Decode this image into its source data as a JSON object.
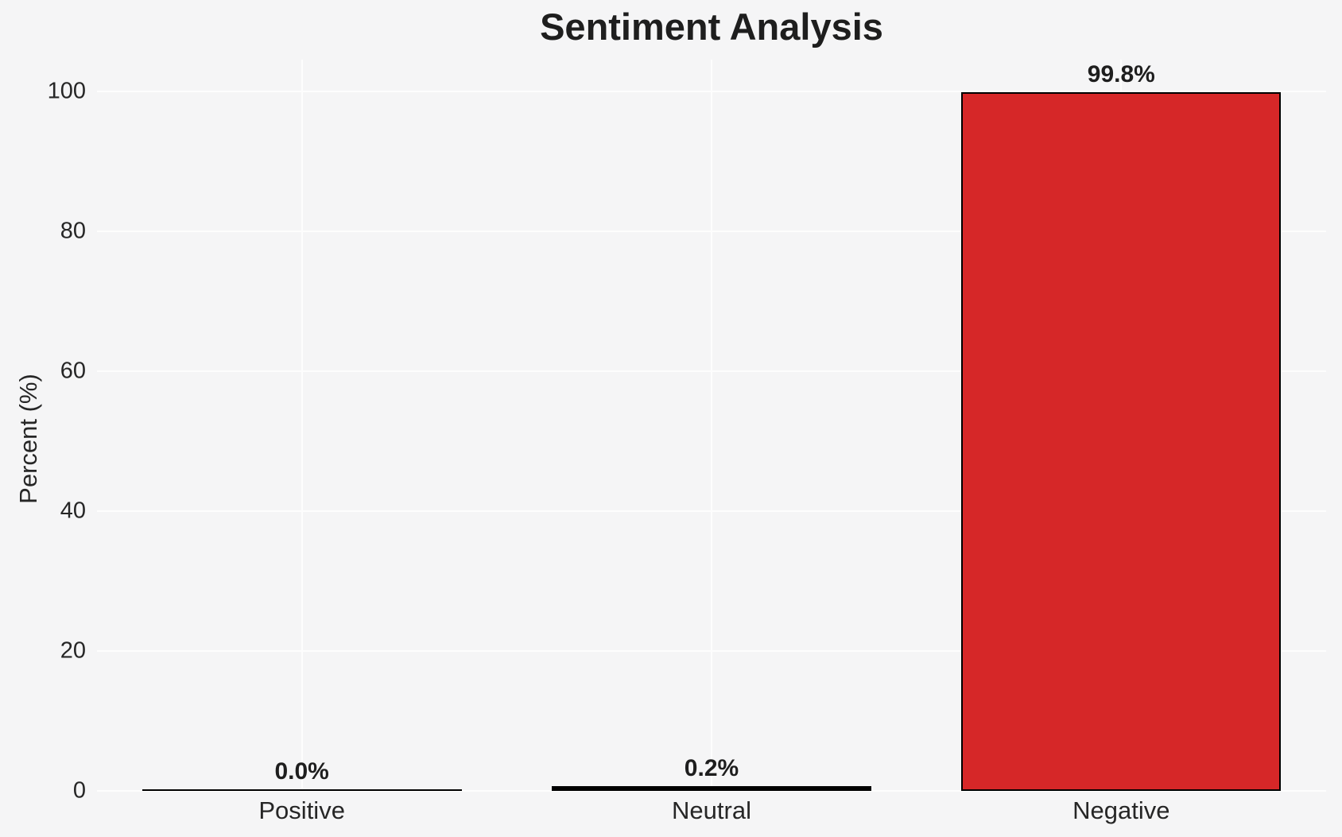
{
  "chart_data": {
    "type": "bar",
    "title": "Sentiment Analysis",
    "xlabel": "",
    "ylabel": "Percent (%)",
    "categories": [
      "Positive",
      "Neutral",
      "Negative"
    ],
    "values": [
      0.0,
      0.2,
      99.8
    ],
    "value_labels": [
      "0.0%",
      "0.2%",
      "99.8%"
    ],
    "yticks": [
      0,
      20,
      40,
      60,
      80,
      100
    ],
    "ylim": [
      0,
      104.5
    ],
    "grid": true,
    "legend_position": "none",
    "bar_width_fraction": 0.78,
    "colors": {
      "background": "#f5f5f6",
      "gridline": "#fdfdfd",
      "bar_fill": "#d62728",
      "bar_edge": "#000000",
      "tick_text": "#262626",
      "title_text": "#1e1e1e",
      "value_label_text": "#1e1e1e"
    }
  }
}
